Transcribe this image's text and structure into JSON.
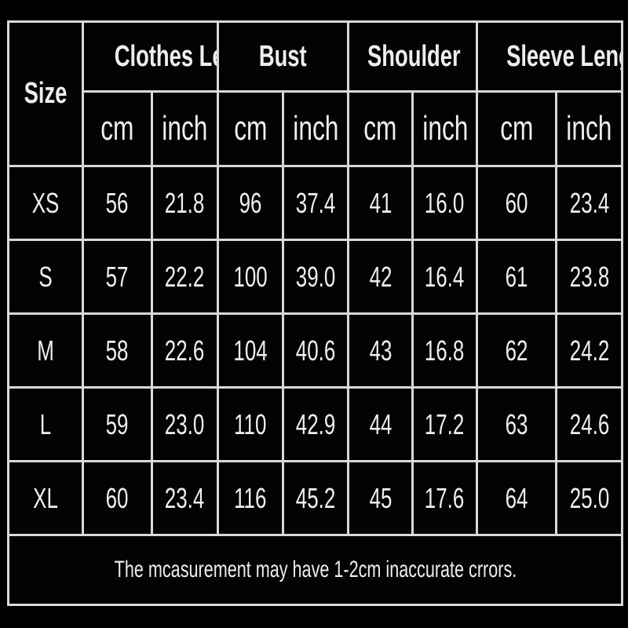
{
  "headers": {
    "size": "Size",
    "groups": [
      "Clothes Length",
      "Bust",
      "Shoulder",
      "Sleeve Length"
    ],
    "units": [
      "cm",
      "inch"
    ]
  },
  "rows": [
    {
      "size": "XS",
      "values": [
        "56",
        "21.8",
        "96",
        "37.4",
        "41",
        "16.0",
        "60",
        "23.4"
      ]
    },
    {
      "size": "S",
      "values": [
        "57",
        "22.2",
        "100",
        "39.0",
        "42",
        "16.4",
        "61",
        "23.8"
      ]
    },
    {
      "size": "M",
      "values": [
        "58",
        "22.6",
        "104",
        "40.6",
        "43",
        "16.8",
        "62",
        "24.2"
      ]
    },
    {
      "size": "L",
      "values": [
        "59",
        "23.0",
        "110",
        "42.9",
        "44",
        "17.2",
        "63",
        "24.6"
      ]
    },
    {
      "size": "XL",
      "values": [
        "60",
        "23.4",
        "116",
        "45.2",
        "45",
        "17.6",
        "64",
        "25.0"
      ]
    }
  ],
  "footer": "The mcasurement may have 1-2cm inaccurate crrors.",
  "colors": {
    "background": "#000000",
    "text": "#eeeeee",
    "grid": "#d8d8d8"
  }
}
